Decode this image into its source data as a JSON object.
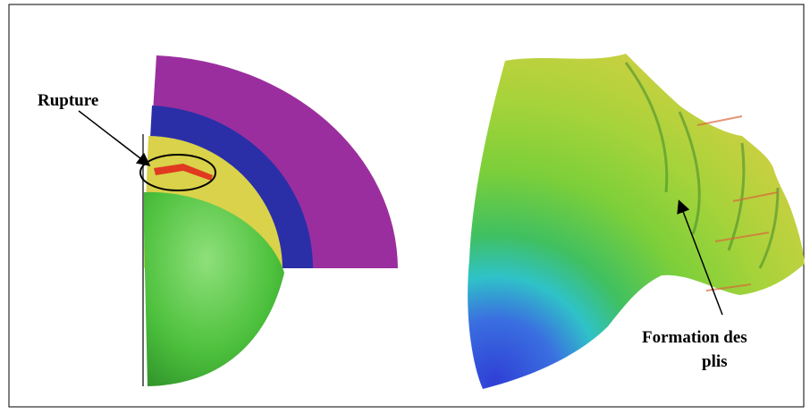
{
  "annotations": {
    "left": "Rupture",
    "right": [
      "Formation des",
      "plis"
    ]
  }
}
